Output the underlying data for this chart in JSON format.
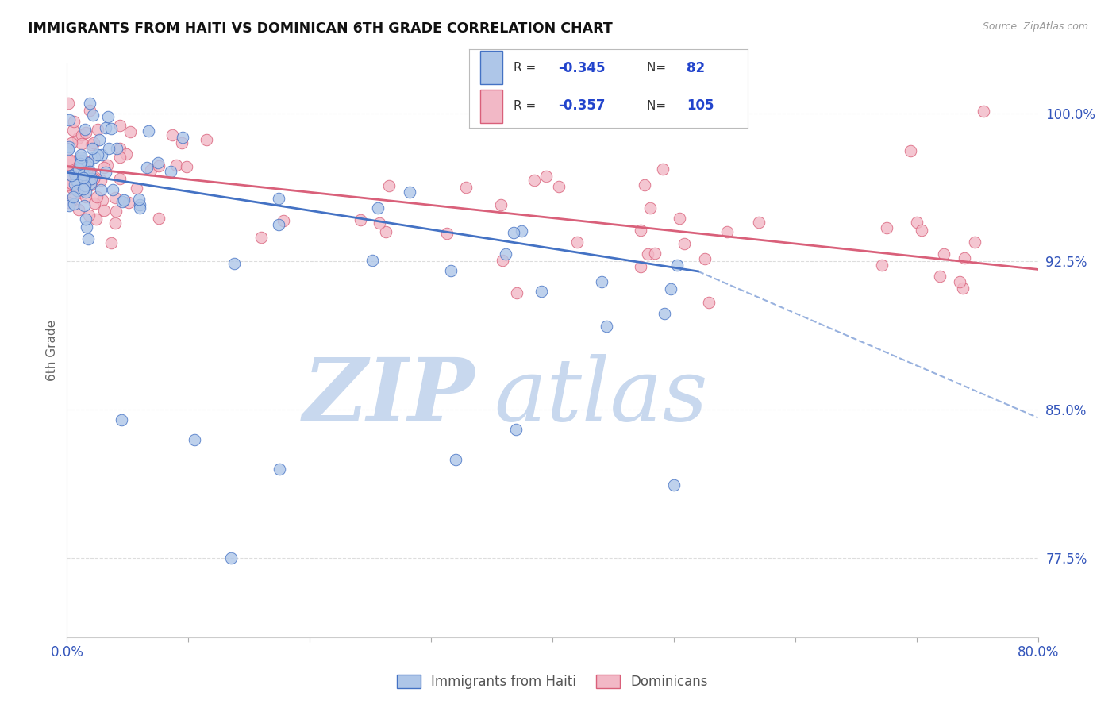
{
  "title": "IMMIGRANTS FROM HAITI VS DOMINICAN 6TH GRADE CORRELATION CHART",
  "source": "Source: ZipAtlas.com",
  "ylabel": "6th Grade",
  "ytick_labels": [
    "77.5%",
    "85.0%",
    "92.5%",
    "100.0%"
  ],
  "ytick_values": [
    0.775,
    0.85,
    0.925,
    1.0
  ],
  "xmin": 0.0,
  "xmax": 0.8,
  "ymin": 0.735,
  "ymax": 1.025,
  "legend_R_haiti": "-0.345",
  "legend_N_haiti": "82",
  "legend_R_dominican": "-0.357",
  "legend_N_dominican": "105",
  "haiti_color": "#aec6e8",
  "dominican_color": "#f2b8c6",
  "haiti_line_color": "#4472c4",
  "dominican_line_color": "#d9607a",
  "haiti_trend_x0": 0.0,
  "haiti_trend_y0": 0.97,
  "haiti_trend_x1": 0.52,
  "haiti_trend_y1": 0.92,
  "haiti_trend_dash_x1": 0.8,
  "haiti_trend_dash_y1": 0.846,
  "dominican_trend_x0": 0.0,
  "dominican_trend_y0": 0.973,
  "dominican_trend_x1": 0.8,
  "dominican_trend_y1": 0.921,
  "watermark_zip_color": "#c8d8ee",
  "watermark_atlas_color": "#c8d8ee",
  "background_color": "#ffffff",
  "grid_color": "#dddddd",
  "grid_style": "--"
}
